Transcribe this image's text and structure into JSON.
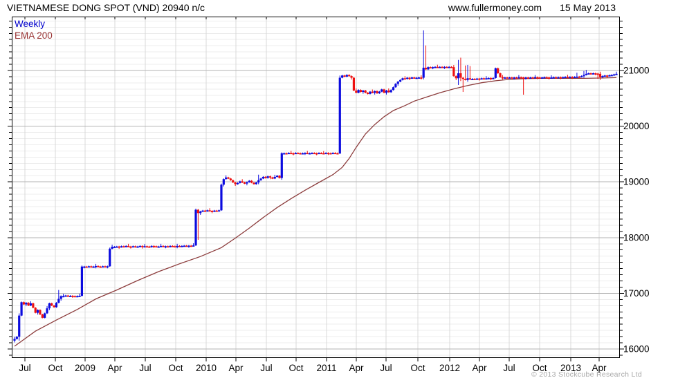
{
  "header": {
    "title": "VIETNAMESE DONG SPOT (VND) 20940 n/c",
    "website": "www.fullermoney.com",
    "date": "15 May 2013"
  },
  "legend": {
    "series_label": "Weekly",
    "ema_label": "EMA 200"
  },
  "footer": {
    "copyright": "© 2013 Stockcube Research Ltd"
  },
  "colors": {
    "up": "#0b0bdf",
    "down": "#ee1111",
    "ema": "#8c3c3c",
    "legend_series": "#0000cc",
    "legend_ema": "#993333",
    "grid_minor": "#ececec",
    "grid_vertical": "#d9d9d9",
    "grid_major": "#b3b3b3",
    "frame": "#000000",
    "copyright": "#a8a8a8"
  },
  "chart_data": {
    "type": "candlestick",
    "title": "VIETNAMESE DONG SPOT (VND) 20940 n/c",
    "interval": "Weekly",
    "overlay": "EMA 200",
    "last_price": 20940,
    "change": "n/c",
    "date": "15 May 2013",
    "x_tick_labels": [
      "Jul",
      "Oct",
      "2009",
      "Apr",
      "Jul",
      "Oct",
      "2010",
      "Apr",
      "Jul",
      "Oct",
      "2011",
      "Apr",
      "Jul",
      "Oct",
      "2012",
      "Apr",
      "Jul",
      "Oct",
      "2013",
      "Apr"
    ],
    "y_ticks": [
      16000,
      17000,
      18000,
      19000,
      20000,
      21000
    ],
    "y_minor_per_major": 9,
    "ylim": [
      15840,
      21970
    ],
    "first_open": 16150,
    "weekly_closes": [
      16180,
      16220,
      16600,
      16840,
      16800,
      16830,
      16780,
      16820,
      16740,
      16650,
      16700,
      16620,
      16560,
      16640,
      16730,
      16820,
      16780,
      16750,
      16830,
      16900,
      16950,
      16950,
      16960,
      16945,
      16955,
      16950,
      16940,
      16950,
      16955,
      17480,
      17480,
      17475,
      17485,
      17470,
      17480,
      17490,
      17480,
      17475,
      17485,
      17480,
      17485,
      17800,
      17835,
      17835,
      17840,
      17830,
      17845,
      17835,
      17850,
      17840,
      17835,
      17845,
      17830,
      17840,
      17850,
      17835,
      17845,
      17840,
      17830,
      17850,
      17845,
      17835,
      17840,
      17850,
      17840,
      17845,
      17835,
      17850,
      17845,
      17840,
      17850,
      17845,
      17850,
      17855,
      17850,
      17855,
      17850,
      17860,
      18500,
      18440,
      18470,
      18485,
      18475,
      18490,
      18480,
      18470,
      18485,
      18480,
      18490,
      18950,
      19050,
      19080,
      19060,
      19030,
      18990,
      18960,
      18980,
      19010,
      18990,
      18970,
      18995,
      19020,
      18985,
      18960,
      18990,
      19030,
      19060,
      19090,
      19070,
      19100,
      19080,
      19060,
      19090,
      19110,
      19070,
      19515,
      19515,
      19510,
      19520,
      19515,
      19510,
      19520,
      19515,
      19510,
      19515,
      19520,
      19510,
      19515,
      19520,
      19515,
      19510,
      19520,
      19515,
      19510,
      19520,
      19515,
      19510,
      19520,
      19515,
      19510,
      20870,
      20910,
      20890,
      20920,
      20900,
      20870,
      20640,
      20600,
      20650,
      20615,
      20640,
      20600,
      20580,
      20620,
      20600,
      20630,
      20590,
      20620,
      20660,
      20600,
      20640,
      20610,
      20650,
      20700,
      20760,
      20800,
      20830,
      20860,
      20850,
      20870,
      20860,
      20875,
      20865,
      20870,
      20875,
      20870,
      21050,
      21020,
      21060,
      21055,
      21060,
      21065,
      21060,
      21065,
      21060,
      21065,
      21060,
      21065,
      21060,
      20900,
      20860,
      20950,
      20870,
      20850,
      20830,
      20860,
      20840,
      20850,
      20845,
      20855,
      20850,
      20860,
      20855,
      20860,
      20865,
      20855,
      20865,
      21040,
      20950,
      20880,
      20870,
      20875,
      20870,
      20875,
      20870,
      20875,
      20870,
      20880,
      20875,
      20870,
      20875,
      20870,
      20875,
      20870,
      20880,
      20875,
      20870,
      20875,
      20880,
      20875,
      20870,
      20875,
      20880,
      20875,
      20880,
      20875,
      20880,
      20885,
      20880,
      20885,
      20880,
      20885,
      20890,
      20885,
      20900,
      20920,
      20940,
      20950,
      20945,
      20950,
      20945,
      20940,
      20880,
      20900,
      20910,
      20905,
      20915,
      20920,
      20930,
      20940
    ],
    "wick_overrides": {
      "2": [
        16640,
        16150
      ],
      "19": [
        17060,
        null
      ],
      "29": [
        17500,
        16940
      ],
      "41": [
        17820,
        null
      ],
      "78": [
        18520,
        17850
      ],
      "79": [
        null,
        17960
      ],
      "89": [
        18970,
        null
      ],
      "105": [
        19130,
        null
      ],
      "115": [
        19530,
        null
      ],
      "140": [
        20910,
        19500
      ],
      "176": [
        21720,
        20840
      ],
      "177": [
        21450,
        null
      ],
      "191": [
        21190,
        20740
      ],
      "192": [
        21230,
        20810
      ],
      "193": [
        null,
        20615
      ],
      "194": [
        21090,
        null
      ],
      "195": [
        21100,
        null
      ],
      "196": [
        21080,
        null
      ],
      "219": [
        null,
        20565
      ],
      "242": [
        20960,
        null
      ],
      "245": [
        20990,
        null
      ],
      "246": [
        21010,
        null
      ],
      "251": [
        null,
        20850
      ],
      "252": [
        null,
        20830
      ]
    },
    "ema_200": [
      [
        0,
        16050
      ],
      [
        9,
        16320
      ],
      [
        18,
        16520
      ],
      [
        27,
        16710
      ],
      [
        35,
        16900
      ],
      [
        44,
        17060
      ],
      [
        53,
        17230
      ],
      [
        62,
        17390
      ],
      [
        71,
        17530
      ],
      [
        80,
        17660
      ],
      [
        89,
        17820
      ],
      [
        95,
        17990
      ],
      [
        101,
        18170
      ],
      [
        107,
        18360
      ],
      [
        113,
        18540
      ],
      [
        119,
        18700
      ],
      [
        125,
        18850
      ],
      [
        131,
        18990
      ],
      [
        137,
        19130
      ],
      [
        141,
        19260
      ],
      [
        144,
        19420
      ],
      [
        147,
        19620
      ],
      [
        151,
        19860
      ],
      [
        155,
        20030
      ],
      [
        159,
        20170
      ],
      [
        163,
        20280
      ],
      [
        168,
        20370
      ],
      [
        172,
        20450
      ],
      [
        177,
        20520
      ],
      [
        183,
        20600
      ],
      [
        189,
        20670
      ],
      [
        195,
        20730
      ],
      [
        201,
        20780
      ],
      [
        207,
        20815
      ],
      [
        213,
        20840
      ],
      [
        220,
        20855
      ],
      [
        227,
        20860
      ],
      [
        236,
        20858
      ],
      [
        245,
        20858
      ],
      [
        253,
        20865
      ],
      [
        259,
        20872
      ]
    ]
  }
}
